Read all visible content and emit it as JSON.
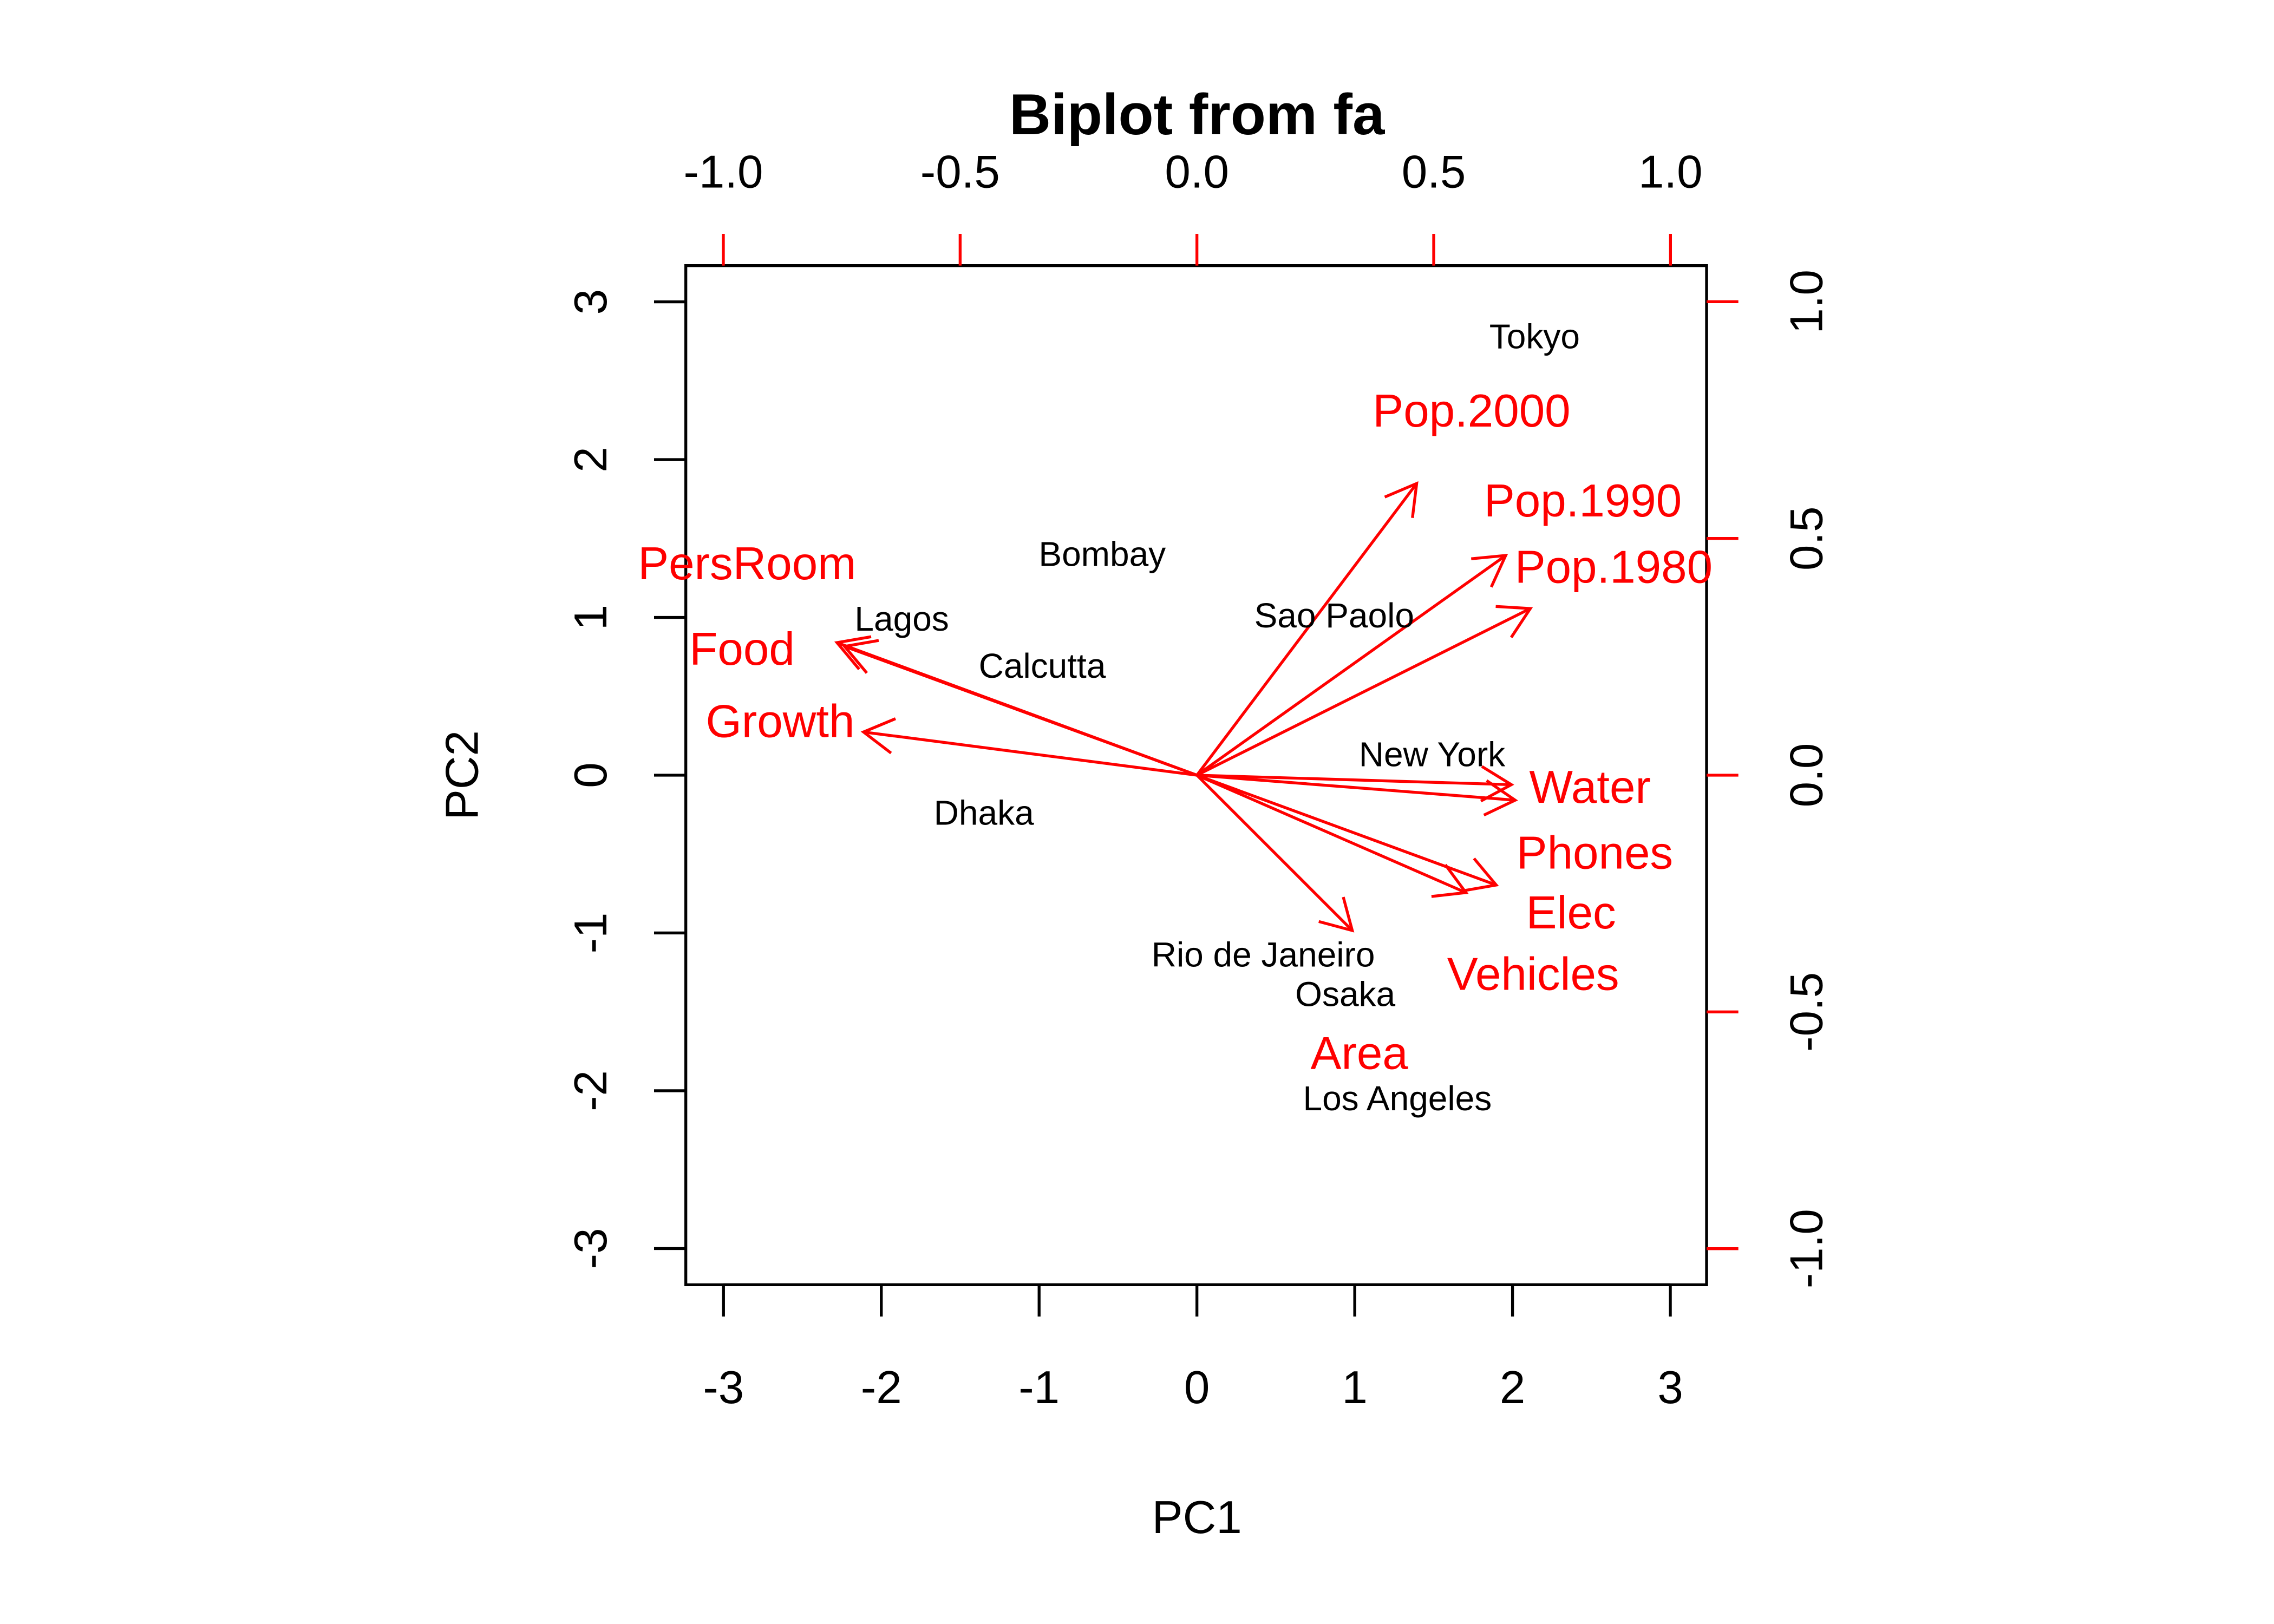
{
  "chart_data": {
    "type": "scatter",
    "subtype": "biplot",
    "title": "Biplot from fa",
    "xlabel": "PC1",
    "ylabel": "PC2",
    "xlim": [
      -3.2,
      3.2
    ],
    "ylim": [
      -3.2,
      3.2
    ],
    "x_ticks": [
      -3,
      -2,
      -1,
      0,
      1,
      2,
      3
    ],
    "y_ticks": [
      -3,
      -2,
      -1,
      0,
      1,
      2,
      3
    ],
    "x_tick_labels": [
      "-3",
      "-2",
      "-1",
      "0",
      "1",
      "2",
      "3"
    ],
    "y_tick_labels": [
      "-3",
      "-2",
      "-1",
      "0",
      "1",
      "2",
      "3"
    ],
    "top_ticks": [
      -1,
      -0.5,
      0,
      0.5,
      1
    ],
    "top_tick_labels": [
      "-1.0",
      "-0.5",
      "0.0",
      "0.5",
      "1.0"
    ],
    "right_ticks": [
      -1,
      -0.5,
      0,
      0.5,
      1
    ],
    "right_tick_labels": [
      "-1.0",
      "-0.5",
      "0.0",
      "0.5",
      "1.0"
    ],
    "grid": false,
    "colors": {
      "points": "#000000",
      "loadings": "#ff0000"
    },
    "points": [
      {
        "label": "Tokyo",
        "x": 2.14,
        "y": 2.43
      },
      {
        "label": "Bombay",
        "x": -0.6,
        "y": 1.4
      },
      {
        "label": "Sao Paolo",
        "x": 0.87,
        "y": 1.01
      },
      {
        "label": "Lagos",
        "x": -1.87,
        "y": 0.99
      },
      {
        "label": "Calcutta",
        "x": -0.98,
        "y": 0.69
      },
      {
        "label": "New York",
        "x": 1.49,
        "y": 0.13
      },
      {
        "label": "Dhaka",
        "x": -1.35,
        "y": -0.24
      },
      {
        "label": "Rio de Janeiro",
        "x": 0.42,
        "y": -1.14
      },
      {
        "label": "Osaka",
        "x": 0.94,
        "y": -1.39
      },
      {
        "label": "Los Angeles",
        "x": 1.27,
        "y": -2.05
      }
    ],
    "loadings": [
      {
        "label": "Pop.2000",
        "x": 0.58,
        "y": 0.77
      },
      {
        "label": "Pop.1990",
        "x": 0.815,
        "y": 0.58
      },
      {
        "label": "Pop.1980",
        "x": 0.88,
        "y": 0.44
      },
      {
        "label": "Water",
        "x": 0.83,
        "y": -0.025
      },
      {
        "label": "Phones",
        "x": 0.84,
        "y": -0.066
      },
      {
        "label": "Elec",
        "x": 0.79,
        "y": -0.29
      },
      {
        "label": "Vehicles",
        "x": 0.71,
        "y": -0.31
      },
      {
        "label": "Area",
        "x": 0.41,
        "y": -0.41
      },
      {
        "label": "PersRoom",
        "x": -0.95,
        "y": 0.35
      },
      {
        "label": "Food",
        "x": -0.93,
        "y": 0.34
      },
      {
        "label": "Growth",
        "x": -0.88,
        "y": 0.114
      }
    ],
    "arrow_scale": 0.8
  }
}
